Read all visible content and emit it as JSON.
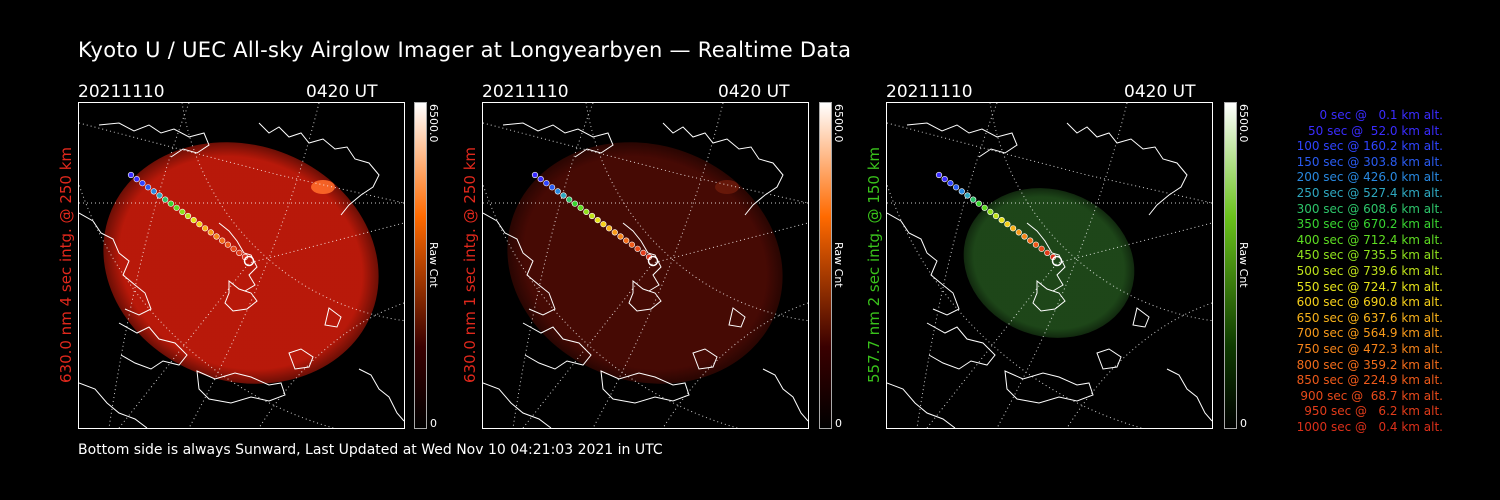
{
  "title": "Kyoto U / UEC All-sky Airglow Imager at Longyearbyen — Realtime Data",
  "footer": "Bottom side is always Sunward, Last Updated at Wed Nov 10 04:21:03 2021 in UTC",
  "panels": [
    {
      "date": "20211110",
      "time": "0420 UT",
      "ylabel": "630.0 nm 4 sec intg. @ 250 km",
      "ylabel_color": "#e0281c",
      "cbar_max": "6500.0",
      "cbar_min": "0",
      "cbar_unit": "Raw Cnt",
      "cbar_color": "#ff6a00",
      "glow_color": "#c21a0a",
      "glow_opacity": 0.95,
      "scale": 1.0
    },
    {
      "date": "20211110",
      "time": "0420 UT",
      "ylabel": "630.0 nm 1 sec intg. @ 250 km",
      "ylabel_color": "#e0281c",
      "cbar_max": "6500.0",
      "cbar_min": "0",
      "cbar_unit": "Raw Cnt",
      "cbar_color": "#ff6a00",
      "glow_color": "#4a0a04",
      "glow_opacity": 0.95,
      "scale": 1.0
    },
    {
      "date": "20211110",
      "time": "0420 UT",
      "ylabel": "557.7 nm 2 sec intg. @ 150 km",
      "ylabel_color": "#39c21b",
      "cbar_max": "6500.0",
      "cbar_min": "0",
      "cbar_unit": "Raw Cnt",
      "cbar_color": "#6ac21b",
      "glow_color": "#1f4a1a",
      "glow_opacity": 0.95,
      "scale": 0.62
    }
  ],
  "legend": [
    {
      "text": "0 sec @   0.1 km alt.",
      "color": "#3a2cff"
    },
    {
      "text": "50 sec @  52.0 km alt.",
      "color": "#3a2cff"
    },
    {
      "text": "100 sec @ 160.2 km alt.",
      "color": "#2f44ff"
    },
    {
      "text": "150 sec @ 303.8 km alt.",
      "color": "#2a5cf2"
    },
    {
      "text": "200 sec @ 426.0 km alt.",
      "color": "#2888e0"
    },
    {
      "text": "250 sec @ 527.4 km alt.",
      "color": "#2ea8c0"
    },
    {
      "text": "300 sec @ 608.6 km alt.",
      "color": "#2dc46a"
    },
    {
      "text": "350 sec @ 670.2 km alt.",
      "color": "#38d430"
    },
    {
      "text": "400 sec @ 712.4 km alt.",
      "color": "#5edc22"
    },
    {
      "text": "450 sec @ 735.5 km alt.",
      "color": "#8ee01c"
    },
    {
      "text": "500 sec @ 739.6 km alt.",
      "color": "#bfe21a"
    },
    {
      "text": "550 sec @ 724.7 km alt.",
      "color": "#e4e21a"
    },
    {
      "text": "600 sec @ 690.8 km alt.",
      "color": "#f6d01a"
    },
    {
      "text": "650 sec @ 637.6 km alt.",
      "color": "#f8b21a"
    },
    {
      "text": "700 sec @ 564.9 km alt.",
      "color": "#f89a1a"
    },
    {
      "text": "750 sec @ 472.3 km alt.",
      "color": "#f6841a"
    },
    {
      "text": "800 sec @ 359.2 km alt.",
      "color": "#f26c1a"
    },
    {
      "text": "850 sec @ 224.9 km alt.",
      "color": "#ee5a1a"
    },
    {
      "text": "900 sec @  68.7 km alt.",
      "color": "#e84a1a"
    },
    {
      "text": "950 sec @   6.2 km alt.",
      "color": "#e23c1a"
    },
    {
      "text": "1000 sec @   0.4 km alt.",
      "color": "#dc301a"
    }
  ]
}
